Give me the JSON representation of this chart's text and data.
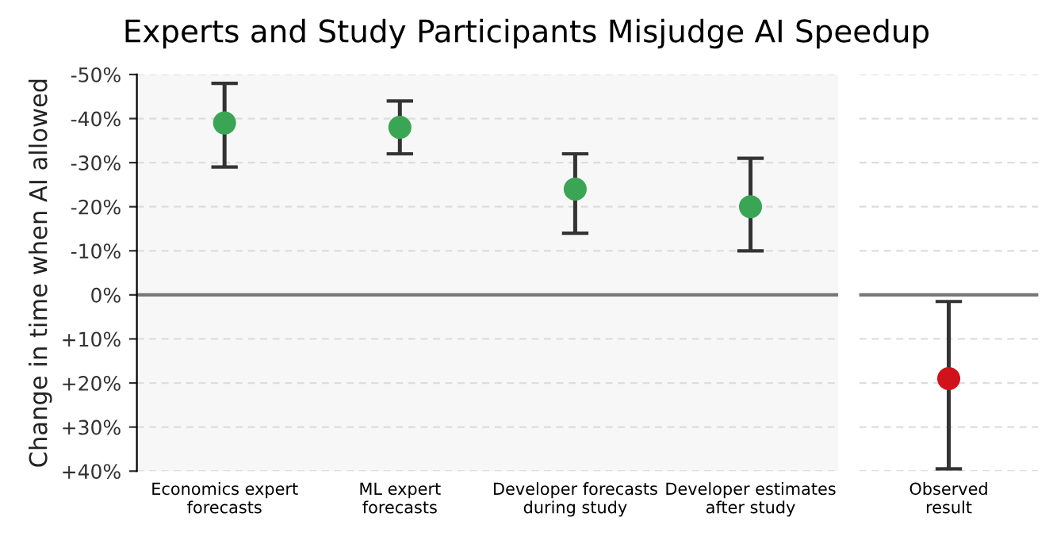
{
  "chart_data": [
    {
      "type": "scatter",
      "title": "Experts and Study Participants Misjudge AI Speedup",
      "ylabel": "Change in time when AI allowed",
      "categories": [
        "Economics expert\nforecasts",
        "ML expert\nforecasts",
        "Developer forecasts\nduring study",
        "Developer estimates\nafter study"
      ],
      "values": [
        -39,
        -38,
        -24,
        -20
      ],
      "errors": [
        [
          -48,
          -29
        ],
        [
          -44,
          -32
        ],
        [
          -32,
          -14
        ],
        [
          -31,
          -10
        ]
      ],
      "color": "#3aa655",
      "ylim": [
        40,
        -50
      ],
      "yticks": [
        {
          "value": -50,
          "label": "-50%"
        },
        {
          "value": -40,
          "label": "-40%"
        },
        {
          "value": -30,
          "label": "-30%"
        },
        {
          "value": -20,
          "label": "-20%"
        },
        {
          "value": -10,
          "label": "-10%"
        },
        {
          "value": 0,
          "label": "0%"
        },
        {
          "value": 10,
          "label": "+10%"
        },
        {
          "value": 20,
          "label": "+20%"
        },
        {
          "value": 30,
          "label": "+30%"
        },
        {
          "value": 40,
          "label": "+40%"
        }
      ],
      "ref_lines": [
        {
          "axis": "y",
          "value": 0,
          "color": "#777777"
        }
      ],
      "grid": "y",
      "marker": "circle"
    },
    {
      "type": "scatter",
      "categories": [
        "Observed\nresult"
      ],
      "values": [
        19
      ],
      "errors": [
        [
          1.5,
          39.5
        ]
      ],
      "color": "#d0121b",
      "ylim": [
        40,
        -50
      ],
      "yticks": [
        -50,
        -40,
        -30,
        -20,
        -10,
        0,
        10,
        20,
        30,
        40
      ],
      "ref_lines": [
        {
          "axis": "y",
          "value": 0,
          "color": "#777777"
        }
      ],
      "grid": "y",
      "marker": "circle",
      "tick_labels": "x"
    }
  ]
}
